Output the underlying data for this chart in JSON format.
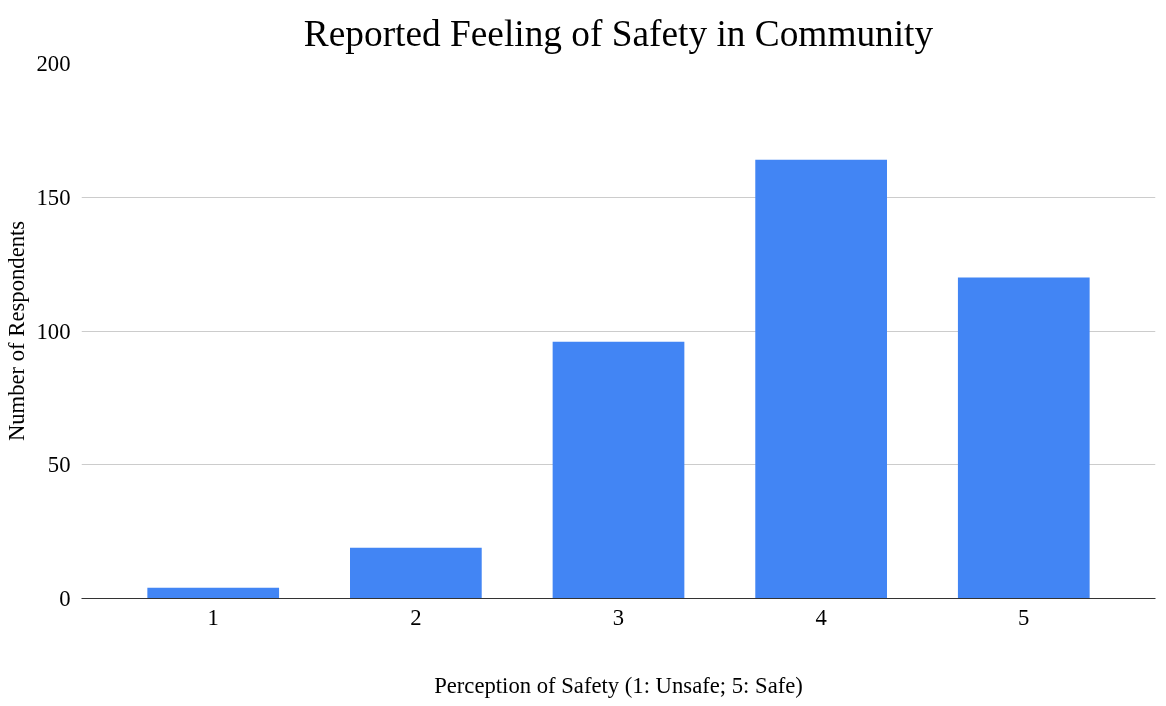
{
  "chart_data": {
    "type": "bar",
    "title": "Reported Feeling of Safety in Community",
    "xlabel": "Perception of Safety (1: Unsafe; 5: Safe)",
    "ylabel": "Number of Respondents",
    "categories": [
      "1",
      "2",
      "3",
      "4",
      "5"
    ],
    "values": [
      4,
      19,
      96,
      164,
      120
    ],
    "color": "#4285f4",
    "ylim": [
      0,
      200
    ],
    "yticks": [
      0,
      50,
      100,
      150,
      200
    ],
    "grid": "y"
  }
}
